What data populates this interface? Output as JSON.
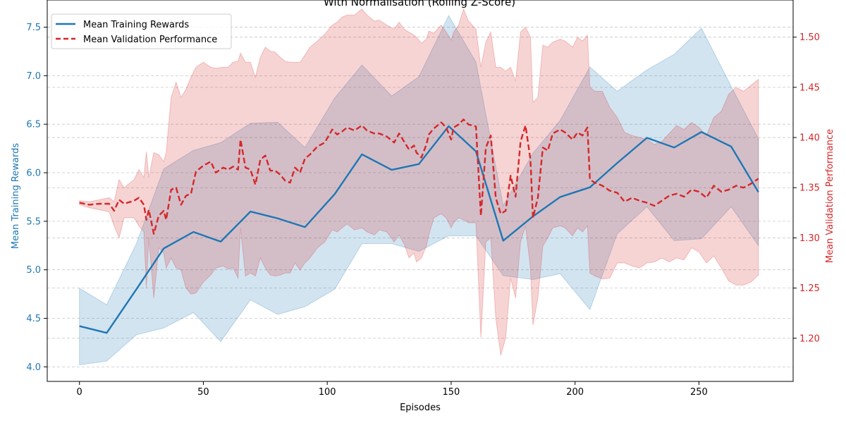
{
  "chart_data": {
    "type": "line",
    "title": "With Normalisation (Rolling Z-Score)",
    "xlabel": "Episodes",
    "ylabel_left": "Mean Training Rewards",
    "ylabel_right": "Mean Validation Performance",
    "xlim": [
      -13,
      288
    ],
    "ylim_left": [
      3.85,
      7.78
    ],
    "ylim_right": [
      1.157,
      1.537
    ],
    "x_ticks": [
      0,
      50,
      100,
      150,
      200,
      250
    ],
    "y_ticks_left": [
      4.0,
      4.5,
      5.0,
      5.5,
      6.0,
      6.5,
      7.0,
      7.5
    ],
    "y_ticks_right": [
      1.2,
      1.25,
      1.3,
      1.35,
      1.4,
      1.45,
      1.5
    ],
    "grid": "horizontal-dashed",
    "legend_position": "top-left",
    "colors": {
      "training": "#1f77b4",
      "validation": "#d62728"
    },
    "series": [
      {
        "name": "Mean Training Rewards",
        "axis": "left",
        "style": "solid",
        "x": [
          0,
          11,
          23,
          34,
          46,
          57,
          69,
          80,
          91,
          103,
          114,
          126,
          137,
          149,
          160,
          171,
          183,
          194,
          206,
          217,
          229,
          240,
          251,
          263,
          274
        ],
        "values": [
          4.42,
          4.35,
          4.8,
          5.22,
          5.39,
          5.29,
          5.6,
          5.53,
          5.44,
          5.78,
          6.19,
          6.03,
          6.09,
          6.48,
          6.22,
          5.3,
          5.55,
          5.75,
          5.85,
          6.1,
          6.36,
          6.26,
          6.42,
          6.27,
          5.8
        ],
        "lower": [
          4.02,
          4.06,
          4.33,
          4.4,
          4.56,
          4.26,
          4.69,
          4.54,
          4.62,
          4.8,
          5.27,
          5.27,
          5.19,
          5.35,
          5.35,
          4.94,
          4.9,
          4.96,
          4.59,
          5.37,
          5.65,
          5.3,
          5.32,
          5.65,
          5.25
        ],
        "upper": [
          4.81,
          4.64,
          5.27,
          6.04,
          6.23,
          6.31,
          6.51,
          6.52,
          6.26,
          6.77,
          7.11,
          6.79,
          6.99,
          7.62,
          7.14,
          5.66,
          6.2,
          6.54,
          7.09,
          6.84,
          7.06,
          7.22,
          7.49,
          6.89,
          6.35
        ]
      },
      {
        "name": "Mean Validation Performance",
        "axis": "right",
        "style": "dashed",
        "x": [
          0,
          4,
          8,
          12,
          14,
          16,
          18,
          22,
          24,
          26,
          27,
          28,
          30,
          32,
          34,
          35,
          37,
          39,
          41,
          43,
          45,
          47,
          50,
          53,
          55,
          58,
          60,
          62,
          64,
          65,
          67,
          69,
          71,
          73,
          75,
          77,
          79,
          81,
          83,
          85,
          87,
          89,
          91,
          93,
          96,
          99,
          102,
          104,
          106,
          108,
          111,
          114,
          116,
          119,
          121,
          124,
          127,
          129,
          131,
          133,
          135,
          136,
          138,
          140,
          141,
          143,
          146,
          148,
          150,
          151,
          153,
          155,
          157,
          160,
          162,
          164,
          166,
          168,
          170,
          172,
          174,
          176,
          178,
          180,
          182,
          183,
          185,
          187,
          189,
          191,
          194,
          196,
          199,
          201,
          203,
          205,
          206,
          208,
          211,
          214,
          217,
          220,
          223,
          226,
          229,
          232,
          235,
          238,
          241,
          244,
          247,
          250,
          253,
          256,
          259,
          262,
          265,
          268,
          271,
          274
        ],
        "values": [
          1.335,
          1.333,
          1.334,
          1.334,
          1.327,
          1.338,
          1.334,
          1.337,
          1.34,
          1.333,
          1.318,
          1.328,
          1.304,
          1.322,
          1.327,
          1.318,
          1.348,
          1.35,
          1.333,
          1.342,
          1.344,
          1.366,
          1.372,
          1.376,
          1.365,
          1.37,
          1.368,
          1.371,
          1.368,
          1.398,
          1.37,
          1.368,
          1.353,
          1.378,
          1.382,
          1.367,
          1.367,
          1.363,
          1.357,
          1.355,
          1.37,
          1.365,
          1.379,
          1.383,
          1.391,
          1.395,
          1.408,
          1.403,
          1.406,
          1.41,
          1.407,
          1.412,
          1.407,
          1.404,
          1.404,
          1.401,
          1.395,
          1.404,
          1.396,
          1.388,
          1.392,
          1.385,
          1.38,
          1.393,
          1.403,
          1.409,
          1.415,
          1.41,
          1.398,
          1.41,
          1.413,
          1.418,
          1.413,
          1.411,
          1.322,
          1.39,
          1.402,
          1.34,
          1.324,
          1.327,
          1.362,
          1.341,
          1.396,
          1.412,
          1.378,
          1.32,
          1.34,
          1.39,
          1.387,
          1.404,
          1.408,
          1.405,
          1.398,
          1.405,
          1.402,
          1.41,
          1.358,
          1.355,
          1.352,
          1.347,
          1.345,
          1.336,
          1.34,
          1.337,
          1.335,
          1.332,
          1.337,
          1.342,
          1.344,
          1.341,
          1.348,
          1.346,
          1.34,
          1.352,
          1.346,
          1.348,
          1.352,
          1.35,
          1.354,
          1.359
        ],
        "lower": [
          1.333,
          1.33,
          1.328,
          1.326,
          1.312,
          1.3,
          1.32,
          1.32,
          1.312,
          1.306,
          1.25,
          1.3,
          1.24,
          1.29,
          1.285,
          1.27,
          1.28,
          1.27,
          1.268,
          1.25,
          1.244,
          1.245,
          1.256,
          1.263,
          1.27,
          1.272,
          1.269,
          1.27,
          1.26,
          1.31,
          1.262,
          1.265,
          1.262,
          1.28,
          1.27,
          1.263,
          1.262,
          1.263,
          1.265,
          1.265,
          1.275,
          1.268,
          1.275,
          1.28,
          1.29,
          1.296,
          1.308,
          1.306,
          1.31,
          1.314,
          1.308,
          1.31,
          1.306,
          1.303,
          1.308,
          1.306,
          1.296,
          1.303,
          1.294,
          1.28,
          1.285,
          1.276,
          1.28,
          1.292,
          1.303,
          1.32,
          1.324,
          1.32,
          1.31,
          1.315,
          1.32,
          1.318,
          1.315,
          1.315,
          1.2,
          1.296,
          1.3,
          1.22,
          1.183,
          1.2,
          1.26,
          1.24,
          1.296,
          1.312,
          1.27,
          1.213,
          1.24,
          1.292,
          1.3,
          1.31,
          1.312,
          1.31,
          1.302,
          1.31,
          1.306,
          1.312,
          1.265,
          1.262,
          1.259,
          1.26,
          1.275,
          1.275,
          1.272,
          1.27,
          1.275,
          1.276,
          1.28,
          1.276,
          1.28,
          1.278,
          1.29,
          1.286,
          1.275,
          1.282,
          1.27,
          1.257,
          1.253,
          1.253,
          1.256,
          1.263
        ],
        "upper": [
          1.337,
          1.336,
          1.338,
          1.34,
          1.336,
          1.358,
          1.35,
          1.358,
          1.368,
          1.36,
          1.386,
          1.36,
          1.385,
          1.383,
          1.376,
          1.385,
          1.44,
          1.455,
          1.44,
          1.448,
          1.46,
          1.47,
          1.475,
          1.47,
          1.469,
          1.47,
          1.47,
          1.475,
          1.476,
          1.484,
          1.475,
          1.475,
          1.46,
          1.48,
          1.49,
          1.486,
          1.485,
          1.48,
          1.476,
          1.475,
          1.475,
          1.475,
          1.482,
          1.49,
          1.496,
          1.503,
          1.512,
          1.515,
          1.52,
          1.522,
          1.522,
          1.528,
          1.522,
          1.516,
          1.517,
          1.512,
          1.508,
          1.515,
          1.508,
          1.505,
          1.502,
          1.5,
          1.494,
          1.498,
          1.506,
          1.504,
          1.512,
          1.505,
          1.497,
          1.505,
          1.512,
          1.528,
          1.516,
          1.508,
          1.47,
          1.495,
          1.505,
          1.47,
          1.47,
          1.466,
          1.47,
          1.456,
          1.505,
          1.51,
          1.5,
          1.435,
          1.44,
          1.492,
          1.49,
          1.495,
          1.498,
          1.496,
          1.49,
          1.5,
          1.496,
          1.502,
          1.45,
          1.446,
          1.446,
          1.43,
          1.42,
          1.405,
          1.402,
          1.4,
          1.398,
          1.393,
          1.396,
          1.404,
          1.412,
          1.408,
          1.415,
          1.41,
          1.402,
          1.42,
          1.426,
          1.443,
          1.45,
          1.446,
          1.452,
          1.458
        ]
      }
    ]
  }
}
